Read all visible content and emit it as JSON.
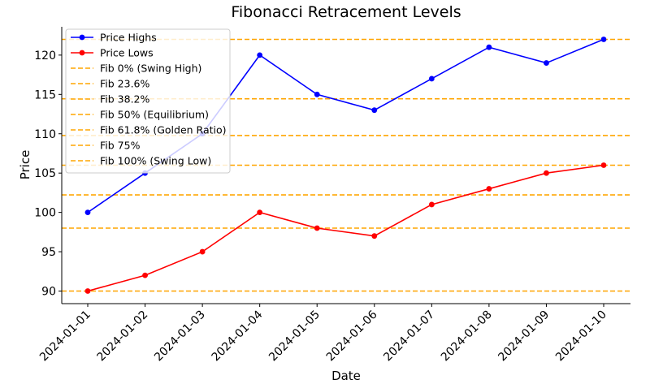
{
  "chart_data": {
    "type": "line",
    "title": "Fibonacci Retracement Levels",
    "xlabel": "Date",
    "ylabel": "Price",
    "categories": [
      "2024-01-01",
      "2024-01-02",
      "2024-01-03",
      "2024-01-04",
      "2024-01-05",
      "2024-01-06",
      "2024-01-07",
      "2024-01-08",
      "2024-01-09",
      "2024-01-10"
    ],
    "ylim": [
      88.4,
      123.6
    ],
    "yticks": [
      90,
      95,
      100,
      105,
      110,
      115,
      120
    ],
    "grid": false,
    "legend_position": "top-left",
    "series": [
      {
        "name": "Price Highs",
        "color": "#0000ff",
        "values": [
          100,
          105,
          110,
          120,
          115,
          113,
          117,
          121,
          119,
          122
        ]
      },
      {
        "name": "Price Lows",
        "color": "#ff0000",
        "values": [
          90,
          92,
          95,
          100,
          98,
          97,
          101,
          103,
          105,
          106
        ]
      }
    ],
    "fib_levels": [
      {
        "name": "Fib 0% (Swing High)",
        "value": 122.0
      },
      {
        "name": "Fib 23.6%",
        "value": 114.448
      },
      {
        "name": "Fib 38.2%",
        "value": 109.776
      },
      {
        "name": "Fib 50% (Equilibrium)",
        "value": 106.0
      },
      {
        "name": "Fib 61.8% (Golden Ratio)",
        "value": 102.224
      },
      {
        "name": "Fib 75%",
        "value": 98.0
      },
      {
        "name": "Fib 100% (Swing Low)",
        "value": 90.0
      }
    ],
    "fib_color": "#ffa500"
  }
}
